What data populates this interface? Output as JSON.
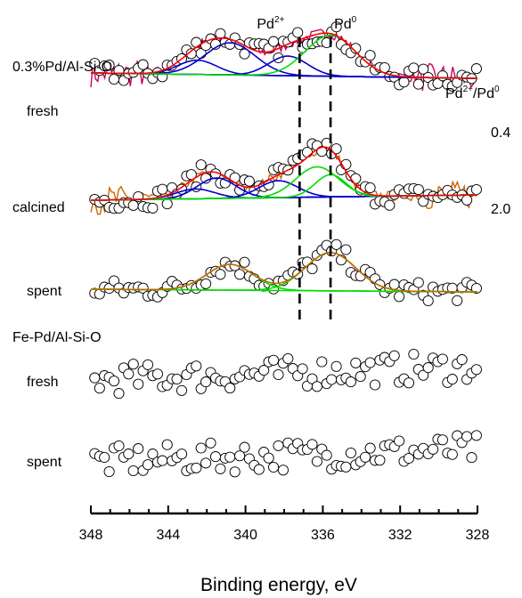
{
  "chart_data": {
    "type": "line",
    "title": "",
    "xlabel": "Binding energy,   eV",
    "ylabel": "",
    "xlim": [
      348,
      328
    ],
    "x_reversed": true,
    "x_ticks": [
      348,
      344,
      340,
      336,
      332,
      328
    ],
    "x_tick_labels": [
      "348",
      "344",
      "340",
      "336",
      "332",
      "328"
    ],
    "reference_lines": [
      {
        "label": "Pd",
        "sup": "2+",
        "x": 337.2,
        "style": "dashed"
      },
      {
        "label": "Pd",
        "sup": "0",
        "x": 335.6,
        "style": "dashed"
      }
    ],
    "ratio_header": {
      "main": "Pd",
      "sup1": "2+",
      "mid": "/Pd",
      "sup2": "0"
    },
    "groups": [
      {
        "label": "0.3%Pd/Al-Si-O"
      },
      {
        "label": "Fe-Pd/Al-Si-O"
      }
    ],
    "series": [
      {
        "name": "fresh",
        "group": 0,
        "ratio": "0.4",
        "baseline": [
          4.6,
          4.0
        ],
        "peaks": [
          {
            "center": 342.5,
            "height": 1.6,
            "width": 1.0
          },
          {
            "center": 340.8,
            "height": 3.6,
            "width": 1.3
          },
          {
            "center": 337.8,
            "height": 2.2,
            "width": 1.0
          },
          {
            "center": 335.6,
            "height": 4.6,
            "width": 1.3
          }
        ]
      },
      {
        "name": "calcined",
        "group": 0,
        "ratio": "2.0",
        "baseline": [
          1.3,
          1.9
        ],
        "peaks": [
          {
            "center": 342.6,
            "height": 1.1,
            "width": 1.0
          },
          {
            "center": 341.5,
            "height": 2.3,
            "width": 1.0
          },
          {
            "center": 338.3,
            "height": 1.9,
            "width": 1.0
          },
          {
            "center": 336.3,
            "height": 3.4,
            "width": 1.1
          },
          {
            "center": 335.6,
            "height": 2.5,
            "width": 0.8
          }
        ]
      },
      {
        "name": "spent",
        "group": 0,
        "ratio": "",
        "baseline": [
          0.5,
          0.2
        ],
        "peaks": [
          {
            "center": 340.8,
            "height": 2.9,
            "width": 1.2
          },
          {
            "center": 335.6,
            "height": 4.3,
            "width": 1.3
          }
        ]
      },
      {
        "name": "fresh",
        "group": 1,
        "ratio": "",
        "baseline": [
          0.5,
          2.0
        ],
        "peaks": []
      },
      {
        "name": "spent",
        "group": 1,
        "ratio": "",
        "baseline": [
          0.3,
          1.7
        ],
        "peaks": []
      }
    ],
    "colors": {
      "data_markers": "#000000",
      "envelope_fit": "#ff0000",
      "component_pd2": "#0000cc",
      "component_pd0": "#00dd00",
      "background": "#0000cc",
      "noise_fresh": "#cc0066",
      "noise_calcined": "#cc6600"
    },
    "grid": false,
    "legend": "none"
  }
}
